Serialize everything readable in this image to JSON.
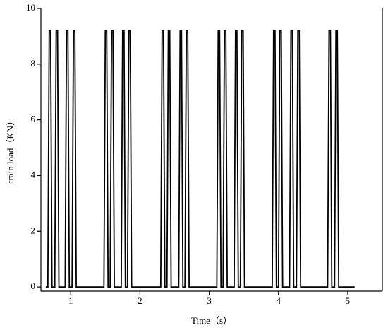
{
  "chart_data": {
    "type": "line",
    "xlabel": "Time（s）",
    "ylabel": "train load（KN）",
    "x": [
      0.64,
      0.67,
      0.69,
      0.71,
      0.73,
      0.77,
      0.79,
      0.81,
      0.83,
      0.92,
      0.94,
      0.96,
      0.98,
      1.02,
      1.04,
      1.06,
      1.08,
      1.48,
      1.5,
      1.52,
      1.54,
      1.57,
      1.59,
      1.61,
      1.63,
      1.73,
      1.75,
      1.77,
      1.79,
      1.82,
      1.84,
      1.86,
      1.88,
      2.3,
      2.32,
      2.34,
      2.36,
      2.39,
      2.41,
      2.43,
      2.45,
      2.56,
      2.58,
      2.6,
      2.62,
      2.65,
      2.67,
      2.69,
      2.71,
      3.11,
      3.13,
      3.15,
      3.17,
      3.2,
      3.22,
      3.24,
      3.26,
      3.36,
      3.38,
      3.4,
      3.42,
      3.45,
      3.47,
      3.49,
      3.51,
      3.91,
      3.93,
      3.95,
      3.97,
      4.0,
      4.02,
      4.04,
      4.06,
      4.16,
      4.18,
      4.2,
      4.22,
      4.26,
      4.28,
      4.3,
      4.32,
      4.71,
      4.73,
      4.75,
      4.77,
      4.81,
      4.83,
      4.85,
      4.87,
      5.1
    ],
    "values": [
      0,
      0,
      9.2,
      9.2,
      0,
      0,
      9.2,
      9.2,
      0,
      0,
      9.2,
      9.2,
      0,
      0,
      9.2,
      9.2,
      0,
      0,
      9.2,
      9.2,
      0,
      0,
      9.2,
      9.2,
      0,
      0,
      9.2,
      9.2,
      0,
      0,
      9.2,
      9.2,
      0,
      0,
      9.2,
      9.2,
      0,
      0,
      9.2,
      9.2,
      0,
      0,
      9.2,
      9.2,
      0,
      0,
      9.2,
      9.2,
      0,
      0,
      9.2,
      9.2,
      0,
      0,
      9.2,
      9.2,
      0,
      0,
      9.2,
      9.2,
      0,
      0,
      9.2,
      9.2,
      0,
      0,
      9.2,
      9.2,
      0,
      0,
      9.2,
      9.2,
      0,
      0,
      9.2,
      9.2,
      0,
      0,
      9.2,
      9.2,
      0,
      0,
      9.2,
      9.2,
      0,
      0,
      9.2,
      9.2,
      0,
      0
    ],
    "color": "#000000",
    "xlim": [
      0.57,
      5.5
    ],
    "ylim": [
      -0.15,
      10
    ],
    "xticks": [
      1,
      2,
      3,
      4,
      5
    ],
    "yticks": [
      0,
      2,
      4,
      6,
      8,
      10
    ]
  }
}
